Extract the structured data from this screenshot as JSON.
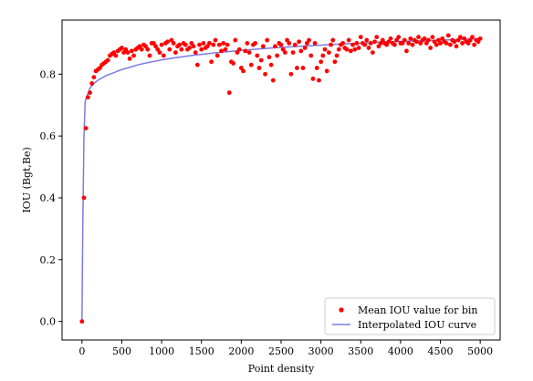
{
  "chart_data": {
    "type": "scatter",
    "xlabel": "Point density",
    "ylabel": "IOU (Bgt,Be)",
    "xlim": [
      -250,
      5250
    ],
    "ylim": [
      -0.06,
      0.975
    ],
    "xticks": [
      0,
      500,
      1000,
      1500,
      2000,
      2500,
      3000,
      3500,
      4000,
      4500,
      5000
    ],
    "yticks": [
      0.0,
      0.2,
      0.4,
      0.6,
      0.8
    ],
    "ytick_labels": [
      "0.0",
      "0.2",
      "0.4",
      "0.6",
      "0.8"
    ],
    "legend": {
      "position": "lower-right",
      "entries": [
        "Mean IOU value for bin",
        "Interpolated IOU curve"
      ]
    },
    "colors": {
      "scatter": "#ff0000",
      "curve": "#7b7be6"
    },
    "series": [
      {
        "name": "Mean IOU value for bin",
        "kind": "scatter",
        "points": [
          [
            0,
            0.0
          ],
          [
            25,
            0.4
          ],
          [
            50,
            0.625
          ],
          [
            75,
            0.725
          ],
          [
            100,
            0.74
          ],
          [
            125,
            0.77
          ],
          [
            150,
            0.79
          ],
          [
            175,
            0.81
          ],
          [
            200,
            0.815
          ],
          [
            225,
            0.82
          ],
          [
            250,
            0.83
          ],
          [
            275,
            0.835
          ],
          [
            300,
            0.84
          ],
          [
            325,
            0.845
          ],
          [
            350,
            0.86
          ],
          [
            375,
            0.865
          ],
          [
            400,
            0.87
          ],
          [
            425,
            0.86
          ],
          [
            450,
            0.875
          ],
          [
            475,
            0.88
          ],
          [
            500,
            0.885
          ],
          [
            525,
            0.87
          ],
          [
            550,
            0.88
          ],
          [
            575,
            0.87
          ],
          [
            600,
            0.85
          ],
          [
            625,
            0.875
          ],
          [
            650,
            0.86
          ],
          [
            675,
            0.88
          ],
          [
            700,
            0.885
          ],
          [
            725,
            0.89
          ],
          [
            750,
            0.88
          ],
          [
            775,
            0.895
          ],
          [
            800,
            0.89
          ],
          [
            825,
            0.88
          ],
          [
            850,
            0.86
          ],
          [
            875,
            0.9
          ],
          [
            900,
            0.9
          ],
          [
            925,
            0.89
          ],
          [
            950,
            0.88
          ],
          [
            975,
            0.87
          ],
          [
            1000,
            0.895
          ],
          [
            1025,
            0.86
          ],
          [
            1050,
            0.9
          ],
          [
            1075,
            0.905
          ],
          [
            1100,
            0.88
          ],
          [
            1125,
            0.91
          ],
          [
            1150,
            0.9
          ],
          [
            1175,
            0.87
          ],
          [
            1200,
            0.89
          ],
          [
            1225,
            0.895
          ],
          [
            1250,
            0.88
          ],
          [
            1275,
            0.9
          ],
          [
            1300,
            0.895
          ],
          [
            1325,
            0.88
          ],
          [
            1350,
            0.885
          ],
          [
            1375,
            0.9
          ],
          [
            1400,
            0.89
          ],
          [
            1425,
            0.87
          ],
          [
            1450,
            0.83
          ],
          [
            1475,
            0.895
          ],
          [
            1500,
            0.88
          ],
          [
            1525,
            0.9
          ],
          [
            1550,
            0.885
          ],
          [
            1575,
            0.89
          ],
          [
            1600,
            0.9
          ],
          [
            1625,
            0.84
          ],
          [
            1650,
            0.895
          ],
          [
            1675,
            0.91
          ],
          [
            1700,
            0.86
          ],
          [
            1725,
            0.895
          ],
          [
            1750,
            0.875
          ],
          [
            1775,
            0.9
          ],
          [
            1800,
            0.88
          ],
          [
            1825,
            0.895
          ],
          [
            1850,
            0.74
          ],
          [
            1875,
            0.84
          ],
          [
            1900,
            0.835
          ],
          [
            1925,
            0.91
          ],
          [
            1950,
            0.87
          ],
          [
            1975,
            0.88
          ],
          [
            2000,
            0.82
          ],
          [
            2025,
            0.81
          ],
          [
            2050,
            0.875
          ],
          [
            2075,
            0.9
          ],
          [
            2100,
            0.87
          ],
          [
            2125,
            0.83
          ],
          [
            2150,
            0.895
          ],
          [
            2175,
            0.9
          ],
          [
            2200,
            0.86
          ],
          [
            2225,
            0.82
          ],
          [
            2250,
            0.845
          ],
          [
            2275,
            0.89
          ],
          [
            2300,
            0.8
          ],
          [
            2325,
            0.91
          ],
          [
            2350,
            0.855
          ],
          [
            2375,
            0.83
          ],
          [
            2400,
            0.78
          ],
          [
            2425,
            0.89
          ],
          [
            2450,
            0.86
          ],
          [
            2475,
            0.9
          ],
          [
            2500,
            0.895
          ],
          [
            2525,
            0.88
          ],
          [
            2550,
            0.87
          ],
          [
            2575,
            0.91
          ],
          [
            2600,
            0.9
          ],
          [
            2625,
            0.8
          ],
          [
            2650,
            0.87
          ],
          [
            2675,
            0.895
          ],
          [
            2700,
            0.82
          ],
          [
            2725,
            0.905
          ],
          [
            2750,
            0.875
          ],
          [
            2775,
            0.82
          ],
          [
            2800,
            0.885
          ],
          [
            2825,
            0.9
          ],
          [
            2850,
            0.91
          ],
          [
            2875,
            0.86
          ],
          [
            2900,
            0.785
          ],
          [
            2925,
            0.9
          ],
          [
            2950,
            0.82
          ],
          [
            2975,
            0.78
          ],
          [
            3000,
            0.84
          ],
          [
            3025,
            0.86
          ],
          [
            3050,
            0.88
          ],
          [
            3075,
            0.81
          ],
          [
            3100,
            0.87
          ],
          [
            3125,
            0.895
          ],
          [
            3150,
            0.91
          ],
          [
            3175,
            0.84
          ],
          [
            3200,
            0.86
          ],
          [
            3225,
            0.88
          ],
          [
            3250,
            0.895
          ],
          [
            3275,
            0.9
          ],
          [
            3300,
            0.885
          ],
          [
            3325,
            0.88
          ],
          [
            3350,
            0.91
          ],
          [
            3375,
            0.875
          ],
          [
            3400,
            0.895
          ],
          [
            3425,
            0.88
          ],
          [
            3450,
            0.9
          ],
          [
            3475,
            0.885
          ],
          [
            3500,
            0.92
          ],
          [
            3525,
            0.9
          ],
          [
            3550,
            0.895
          ],
          [
            3575,
            0.91
          ],
          [
            3600,
            0.885
          ],
          [
            3625,
            0.9
          ],
          [
            3650,
            0.87
          ],
          [
            3675,
            0.905
          ],
          [
            3700,
            0.92
          ],
          [
            3725,
            0.89
          ],
          [
            3750,
            0.9
          ],
          [
            3775,
            0.91
          ],
          [
            3800,
            0.9
          ],
          [
            3825,
            0.895
          ],
          [
            3850,
            0.905
          ],
          [
            3875,
            0.915
          ],
          [
            3900,
            0.9
          ],
          [
            3925,
            0.895
          ],
          [
            3950,
            0.91
          ],
          [
            3975,
            0.92
          ],
          [
            4000,
            0.9
          ],
          [
            4025,
            0.9
          ],
          [
            4050,
            0.91
          ],
          [
            4075,
            0.875
          ],
          [
            4100,
            0.9
          ],
          [
            4125,
            0.915
          ],
          [
            4150,
            0.895
          ],
          [
            4175,
            0.91
          ],
          [
            4200,
            0.905
          ],
          [
            4225,
            0.92
          ],
          [
            4250,
            0.9
          ],
          [
            4275,
            0.91
          ],
          [
            4300,
            0.915
          ],
          [
            4325,
            0.9
          ],
          [
            4350,
            0.91
          ],
          [
            4375,
            0.885
          ],
          [
            4400,
            0.92
          ],
          [
            4425,
            0.905
          ],
          [
            4450,
            0.895
          ],
          [
            4475,
            0.91
          ],
          [
            4500,
            0.9
          ],
          [
            4525,
            0.915
          ],
          [
            4550,
            0.905
          ],
          [
            4575,
            0.9
          ],
          [
            4600,
            0.925
          ],
          [
            4625,
            0.895
          ],
          [
            4650,
            0.91
          ],
          [
            4675,
            0.905
          ],
          [
            4700,
            0.89
          ],
          [
            4725,
            0.91
          ],
          [
            4750,
            0.92
          ],
          [
            4775,
            0.9
          ],
          [
            4800,
            0.915
          ],
          [
            4825,
            0.905
          ],
          [
            4850,
            0.9
          ],
          [
            4875,
            0.91
          ],
          [
            4900,
            0.92
          ],
          [
            4925,
            0.895
          ],
          [
            4950,
            0.91
          ],
          [
            4975,
            0.905
          ],
          [
            5000,
            0.915
          ]
        ]
      },
      {
        "name": "Interpolated IOU curve",
        "kind": "line",
        "points": [
          [
            0,
            0.0
          ],
          [
            10,
            0.3
          ],
          [
            25,
            0.6
          ],
          [
            40,
            0.71
          ],
          [
            50,
            0.72
          ],
          [
            100,
            0.755
          ],
          [
            150,
            0.77
          ],
          [
            200,
            0.78
          ],
          [
            300,
            0.795
          ],
          [
            400,
            0.805
          ],
          [
            500,
            0.815
          ],
          [
            600,
            0.822
          ],
          [
            700,
            0.83
          ],
          [
            800,
            0.836
          ],
          [
            900,
            0.841
          ],
          [
            1000,
            0.846
          ],
          [
            1200,
            0.854
          ],
          [
            1400,
            0.861
          ],
          [
            1600,
            0.867
          ],
          [
            1800,
            0.872
          ],
          [
            2000,
            0.877
          ],
          [
            2200,
            0.881
          ],
          [
            2400,
            0.885
          ],
          [
            2600,
            0.888
          ],
          [
            2800,
            0.891
          ],
          [
            3000,
            0.894
          ],
          [
            3200,
            0.897
          ],
          [
            3400,
            0.899
          ],
          [
            3600,
            0.901
          ],
          [
            3800,
            0.904
          ],
          [
            4000,
            0.906
          ],
          [
            4200,
            0.908
          ],
          [
            4400,
            0.909
          ],
          [
            4600,
            0.911
          ],
          [
            4800,
            0.913
          ],
          [
            5000,
            0.915
          ]
        ]
      }
    ]
  }
}
